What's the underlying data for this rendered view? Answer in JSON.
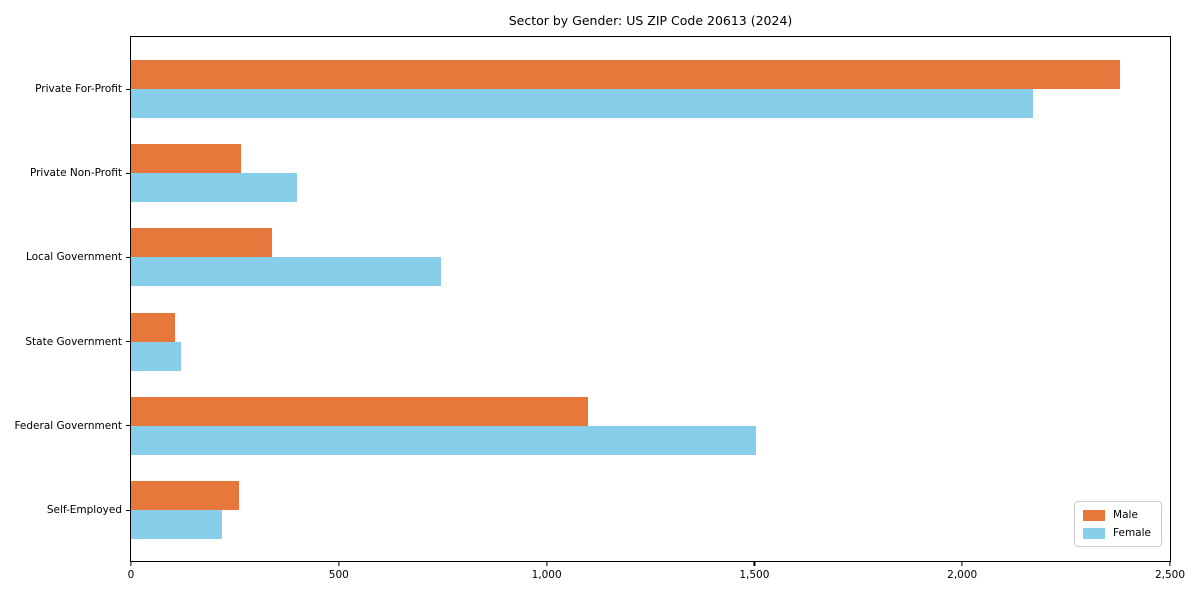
{
  "chart_data": {
    "type": "bar",
    "orientation": "horizontal",
    "title": "Sector by Gender: US ZIP Code 20613 (2024)",
    "categories": [
      "Private For-Profit",
      "Private Non-Profit",
      "Local Government",
      "State Government",
      "Federal Government",
      "Self-Employed"
    ],
    "series": [
      {
        "name": "Male",
        "color": "#e8773b",
        "values": [
          2380,
          265,
          340,
          105,
          1100,
          260
        ]
      },
      {
        "name": "Female",
        "color": "#87ceeb",
        "values": [
          2170,
          400,
          745,
          120,
          1505,
          220
        ]
      }
    ],
    "xlabel": "",
    "ylabel": "",
    "xlim": [
      0,
      2500
    ],
    "x_ticks": [
      0,
      500,
      1000,
      1500,
      2000,
      2500
    ],
    "x_tick_labels": [
      "0",
      "500",
      "1,000",
      "1,500",
      "2,000",
      "2,500"
    ],
    "grid": false,
    "legend": {
      "position": "lower right",
      "entries": [
        "Male",
        "Female"
      ]
    },
    "colors": {
      "axis": "#000000",
      "legend_border": "#cccccc",
      "background": "#ffffff"
    }
  }
}
